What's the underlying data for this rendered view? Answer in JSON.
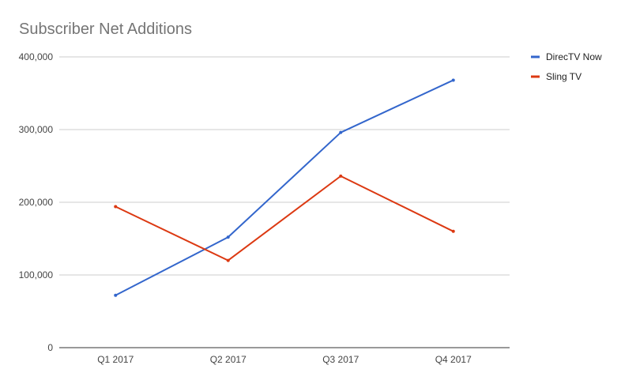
{
  "chart_data": {
    "type": "line",
    "title": "Subscriber Net Additions",
    "xlabel": "",
    "ylabel": "",
    "categories": [
      "Q1 2017",
      "Q2 2017",
      "Q3 2017",
      "Q4 2017"
    ],
    "y_ticks": [
      "0",
      "100,000",
      "200,000",
      "300,000",
      "400,000"
    ],
    "ylim": [
      0,
      400000
    ],
    "grid": true,
    "legend_position": "right",
    "series": [
      {
        "name": "DirecTV Now",
        "color": "#3366cc",
        "values": [
          72000,
          152000,
          296000,
          368000
        ]
      },
      {
        "name": "Sling TV",
        "color": "#dc3912",
        "values": [
          194000,
          120000,
          236000,
          160000
        ]
      }
    ]
  }
}
